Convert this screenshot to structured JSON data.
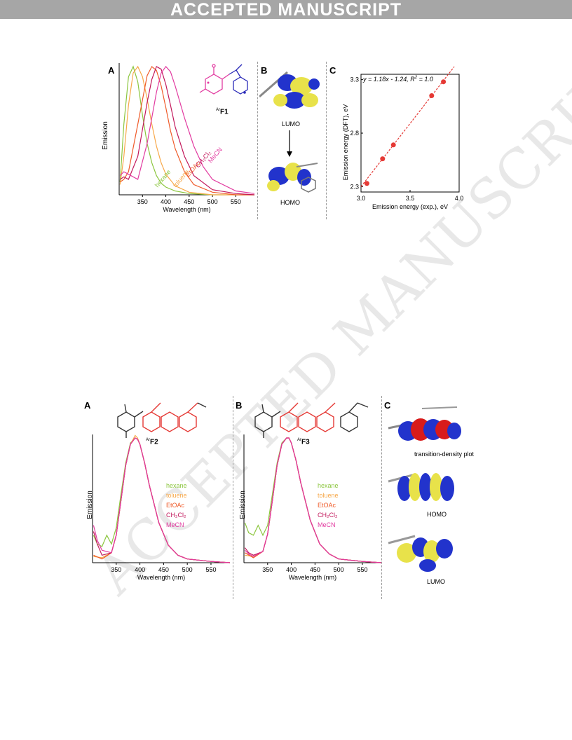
{
  "banner": "ACCEPTED MANUSCRIPT",
  "watermark": "ACCEPTED MANUSCRIPT",
  "figure1": {
    "panel_a": "A",
    "panel_b": "B",
    "panel_c": "C",
    "a_ylabel": "Emission",
    "a_xlabel": "Wavelength (nm)",
    "a_ticks": [
      "350",
      "400",
      "450",
      "500",
      "550"
    ],
    "compound_label": "F1",
    "compound_sup": "Ar",
    "b_lumo": "LUMO",
    "b_homo": "HOMO",
    "c_ylabel": "Emission energy (DFT), eV",
    "c_xlabel": "Emission energy (exp.), eV",
    "c_equation": "y = 1.18x - 1.24, R",
    "c_eq_tail": " = 1.0",
    "c_eq_sup": "2"
  },
  "figure2": {
    "panel_a": "A",
    "panel_b": "B",
    "panel_c": "C",
    "compound_a": "F2",
    "compound_b": "F3",
    "compound_sup": "Ar",
    "ylabel": "Emission",
    "xlabel": "Wavelength (nm)",
    "ticks": [
      "350",
      "400",
      "450",
      "500",
      "550"
    ],
    "c_tdp": "transition-density plot",
    "c_homo": "HOMO",
    "c_lumo": "LUMO"
  },
  "legend_solvents": [
    {
      "name": "hexane",
      "color": "#8cc63f"
    },
    {
      "name": "toluene",
      "color": "#f7a84a"
    },
    {
      "name": "EtOAc",
      "color": "#ef5b2a"
    },
    {
      "name": "CH2Cl2",
      "color": "#c2185b"
    },
    {
      "name": "MeCN",
      "color": "#e23ba0"
    }
  ],
  "chart_data": [
    {
      "type": "line",
      "title": "",
      "xlabel": "Wavelength (nm)",
      "ylabel": "Emission",
      "xlim": [
        300,
        590
      ],
      "xticks": [
        350,
        400,
        450,
        500,
        550
      ],
      "series": [
        {
          "name": "hexane",
          "color": "#8cc63f",
          "x": [
            302,
            310,
            320,
            330,
            340,
            350,
            360,
            370,
            380,
            390,
            400,
            420,
            450,
            500,
            550,
            590
          ],
          "y": [
            0.1,
            0.55,
            0.92,
            1.0,
            0.88,
            0.62,
            0.4,
            0.25,
            0.15,
            0.09,
            0.06,
            0.03,
            0.01,
            0.0,
            0.0,
            0.0
          ]
        },
        {
          "name": "toluene",
          "color": "#f7a84a",
          "x": [
            302,
            310,
            320,
            330,
            340,
            350,
            360,
            370,
            380,
            390,
            400,
            420,
            450,
            500,
            550,
            590
          ],
          "y": [
            0.08,
            0.3,
            0.7,
            0.95,
            1.0,
            0.92,
            0.75,
            0.55,
            0.38,
            0.25,
            0.16,
            0.07,
            0.02,
            0.0,
            0.0,
            0.0
          ]
        },
        {
          "name": "EtOAc",
          "color": "#ef5b2a",
          "x": [
            302,
            310,
            320,
            340,
            360,
            370,
            380,
            390,
            400,
            410,
            420,
            440,
            460,
            500,
            550,
            590
          ],
          "y": [
            0.1,
            0.12,
            0.18,
            0.55,
            0.93,
            1.0,
            0.97,
            0.85,
            0.68,
            0.5,
            0.36,
            0.18,
            0.08,
            0.02,
            0.0,
            0.0
          ]
        },
        {
          "name": "CH2Cl2",
          "color": "#c2185b",
          "x": [
            302,
            310,
            320,
            340,
            360,
            370,
            380,
            390,
            400,
            410,
            420,
            440,
            460,
            500,
            550,
            590
          ],
          "y": [
            0.12,
            0.14,
            0.12,
            0.3,
            0.72,
            0.9,
            1.0,
            0.98,
            0.86,
            0.7,
            0.53,
            0.3,
            0.15,
            0.04,
            0.01,
            0.0
          ]
        },
        {
          "name": "MeCN",
          "color": "#e23ba0",
          "x": [
            302,
            310,
            320,
            340,
            360,
            380,
            390,
            400,
            410,
            420,
            440,
            460,
            480,
            500,
            550,
            590
          ],
          "y": [
            0.15,
            0.18,
            0.16,
            0.12,
            0.4,
            0.8,
            0.95,
            1.0,
            0.96,
            0.85,
            0.6,
            0.38,
            0.22,
            0.12,
            0.03,
            0.01
          ]
        }
      ]
    },
    {
      "type": "scatter",
      "title": "",
      "xlabel": "Emission energy (exp.), eV",
      "ylabel": "Emission energy (DFT), eV",
      "xlim": [
        3.0,
        4.0
      ],
      "ylim": [
        2.25,
        3.35
      ],
      "xticks": [
        3.0,
        3.5,
        4.0
      ],
      "yticks": [
        2.3,
        2.8,
        3.3
      ],
      "fit": {
        "slope": 1.18,
        "intercept": -1.24
      },
      "points": {
        "x": [
          3.06,
          3.22,
          3.33,
          3.72,
          3.84
        ],
        "y": [
          2.33,
          2.56,
          2.69,
          3.15,
          3.28
        ]
      }
    },
    {
      "type": "line",
      "title": "",
      "xlabel": "Wavelength (nm)",
      "ylabel": "Emission",
      "xlim": [
        300,
        590
      ],
      "xticks": [
        350,
        400,
        450,
        500,
        550
      ],
      "series": [
        {
          "name": "hexane",
          "color": "#8cc63f",
          "x": [
            302,
            310,
            320,
            330,
            340,
            350,
            360,
            370,
            380,
            390,
            395,
            400,
            410,
            420,
            440,
            460,
            480,
            500,
            550,
            590
          ],
          "y": [
            0.22,
            0.15,
            0.13,
            0.22,
            0.15,
            0.28,
            0.55,
            0.8,
            0.96,
            1.0,
            0.99,
            0.95,
            0.8,
            0.62,
            0.32,
            0.14,
            0.06,
            0.03,
            0.01,
            0.0
          ]
        },
        {
          "name": "toluene",
          "color": "#f7a84a",
          "x": [
            302,
            320,
            340,
            350,
            360,
            370,
            380,
            390,
            395,
            400,
            410,
            420,
            440,
            460,
            480,
            500,
            550,
            590
          ],
          "y": [
            0.05,
            0.04,
            0.08,
            0.22,
            0.5,
            0.78,
            0.95,
            1.02,
            1.0,
            0.95,
            0.8,
            0.62,
            0.32,
            0.14,
            0.06,
            0.03,
            0.01,
            0.0
          ]
        },
        {
          "name": "EtOAc",
          "color": "#ef5b2a",
          "x": [
            302,
            320,
            340,
            350,
            360,
            370,
            380,
            390,
            395,
            400,
            410,
            420,
            440,
            460,
            480,
            500,
            550,
            590
          ],
          "y": [
            0.06,
            0.03,
            0.08,
            0.22,
            0.5,
            0.78,
            0.95,
            1.0,
            0.99,
            0.95,
            0.8,
            0.62,
            0.32,
            0.14,
            0.06,
            0.03,
            0.01,
            0.0
          ]
        },
        {
          "name": "CH2Cl2",
          "color": "#c2185b",
          "x": [
            302,
            310,
            320,
            340,
            350,
            360,
            370,
            380,
            390,
            395,
            400,
            410,
            420,
            440,
            460,
            480,
            500,
            550,
            590
          ],
          "y": [
            0.25,
            0.15,
            0.06,
            0.08,
            0.22,
            0.5,
            0.78,
            0.95,
            1.0,
            0.99,
            0.95,
            0.8,
            0.62,
            0.32,
            0.14,
            0.06,
            0.03,
            0.01,
            0.0
          ]
        },
        {
          "name": "MeCN",
          "color": "#e23ba0",
          "x": [
            302,
            310,
            320,
            340,
            350,
            360,
            370,
            380,
            390,
            395,
            400,
            410,
            420,
            440,
            460,
            480,
            500,
            550,
            590
          ],
          "y": [
            0.3,
            0.18,
            0.1,
            0.08,
            0.22,
            0.5,
            0.78,
            0.95,
            1.0,
            0.99,
            0.95,
            0.8,
            0.62,
            0.32,
            0.14,
            0.06,
            0.03,
            0.01,
            0.0
          ]
        }
      ]
    },
    {
      "type": "line",
      "title": "",
      "xlabel": "Wavelength (nm)",
      "ylabel": "Emission",
      "xlim": [
        300,
        590
      ],
      "xticks": [
        350,
        400,
        450,
        500,
        550
      ],
      "series": [
        {
          "name": "hexane",
          "color": "#8cc63f",
          "x": [
            302,
            310,
            320,
            330,
            340,
            350,
            360,
            370,
            380,
            390,
            395,
            400,
            410,
            420,
            440,
            460,
            480,
            500,
            550,
            590
          ],
          "y": [
            0.32,
            0.24,
            0.22,
            0.3,
            0.22,
            0.3,
            0.55,
            0.8,
            0.96,
            1.0,
            1.0,
            0.96,
            0.82,
            0.64,
            0.34,
            0.15,
            0.07,
            0.03,
            0.01,
            0.0
          ]
        },
        {
          "name": "toluene",
          "color": "#f7a84a",
          "x": [
            302,
            320,
            340,
            350,
            360,
            370,
            380,
            390,
            395,
            400,
            410,
            420,
            440,
            460,
            480,
            500,
            550,
            590
          ],
          "y": [
            0.06,
            0.05,
            0.09,
            0.23,
            0.5,
            0.78,
            0.95,
            1.0,
            1.0,
            0.96,
            0.82,
            0.64,
            0.34,
            0.15,
            0.07,
            0.03,
            0.01,
            0.0
          ]
        },
        {
          "name": "EtOAc",
          "color": "#ef5b2a",
          "x": [
            302,
            320,
            340,
            350,
            360,
            370,
            380,
            390,
            395,
            400,
            410,
            420,
            440,
            460,
            480,
            500,
            550,
            590
          ],
          "y": [
            0.08,
            0.04,
            0.09,
            0.23,
            0.5,
            0.78,
            0.95,
            1.0,
            1.0,
            0.96,
            0.82,
            0.64,
            0.34,
            0.15,
            0.07,
            0.03,
            0.01,
            0.0
          ]
        },
        {
          "name": "CH2Cl2",
          "color": "#c2185b",
          "x": [
            302,
            310,
            320,
            340,
            350,
            360,
            370,
            380,
            390,
            395,
            400,
            410,
            420,
            440,
            460,
            480,
            500,
            550,
            590
          ],
          "y": [
            0.12,
            0.08,
            0.06,
            0.09,
            0.23,
            0.5,
            0.78,
            0.95,
            1.0,
            1.0,
            0.96,
            0.82,
            0.64,
            0.34,
            0.15,
            0.07,
            0.03,
            0.01,
            0.0
          ]
        },
        {
          "name": "MeCN",
          "color": "#e23ba0",
          "x": [
            302,
            310,
            320,
            340,
            350,
            360,
            370,
            380,
            390,
            395,
            400,
            410,
            420,
            440,
            460,
            480,
            500,
            550,
            590
          ],
          "y": [
            0.1,
            0.07,
            0.05,
            0.09,
            0.23,
            0.5,
            0.78,
            0.95,
            1.0,
            1.0,
            0.96,
            0.82,
            0.64,
            0.34,
            0.15,
            0.07,
            0.03,
            0.01,
            0.0
          ]
        }
      ]
    }
  ]
}
